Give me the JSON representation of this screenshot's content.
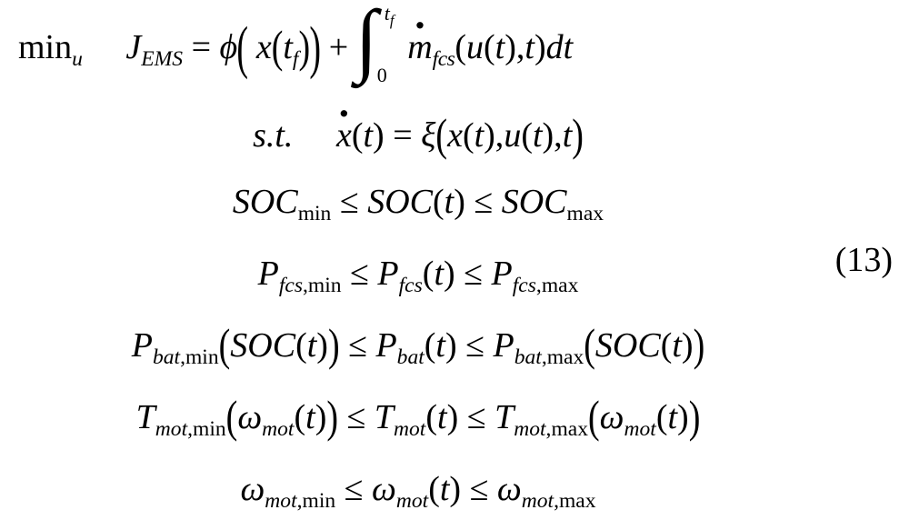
{
  "type": "equation-block",
  "background_color": "#ffffff",
  "text_color": "#000000",
  "font_family": "Times New Roman",
  "base_fontsize_pt": 28,
  "equation_number": "(13)",
  "lines": {
    "l1_min": "min",
    "l1_min_sub": "u",
    "l1_J": "J",
    "l1_J_sub": "EMS",
    "l1_eq": " = ",
    "l1_phi": "ϕ",
    "l1_x": "x",
    "l1_tf": "t",
    "l1_tf_sub": "f",
    "l1_plus": " + ",
    "l1_int_lo": "0",
    "l1_int_up_t": "t",
    "l1_int_up_f": "f",
    "l1_mdot": "m",
    "l1_m_sub": "fcs",
    "l1_u": "u",
    "l1_t": "t",
    "l1_dt": "dt",
    "l2_st": "s.t.",
    "l2_xd": "x",
    "l2_t": "t",
    "l2_eq": " = ",
    "l2_xi": "ξ",
    "l2_x2": "x",
    "l2_u": "u",
    "l3_soc": "SOC",
    "l3_min": "min",
    "l3_le": " ≤ ",
    "l3_t": "t",
    "l3_max": "max",
    "l4_P": "P",
    "l4_fcs": "fcs",
    "l4_min": "min",
    "l4_le": " ≤ ",
    "l4_t": "t",
    "l4_max": "max",
    "l5_P": "P",
    "l5_bat": "bat",
    "l5_min": "min",
    "l5_soc": "SOC",
    "l5_t": "t",
    "l5_le": " ≤ ",
    "l5_max": "max",
    "l6_T": "T",
    "l6_mot": "mot",
    "l6_min": "min",
    "l6_om": "ω",
    "l6_t": "t",
    "l6_le": " ≤ ",
    "l6_max": "max",
    "l7_om": "ω",
    "l7_mot": "mot",
    "l7_min": "min",
    "l7_le": " ≤ ",
    "l7_t": "t",
    "l7_max": "max"
  }
}
